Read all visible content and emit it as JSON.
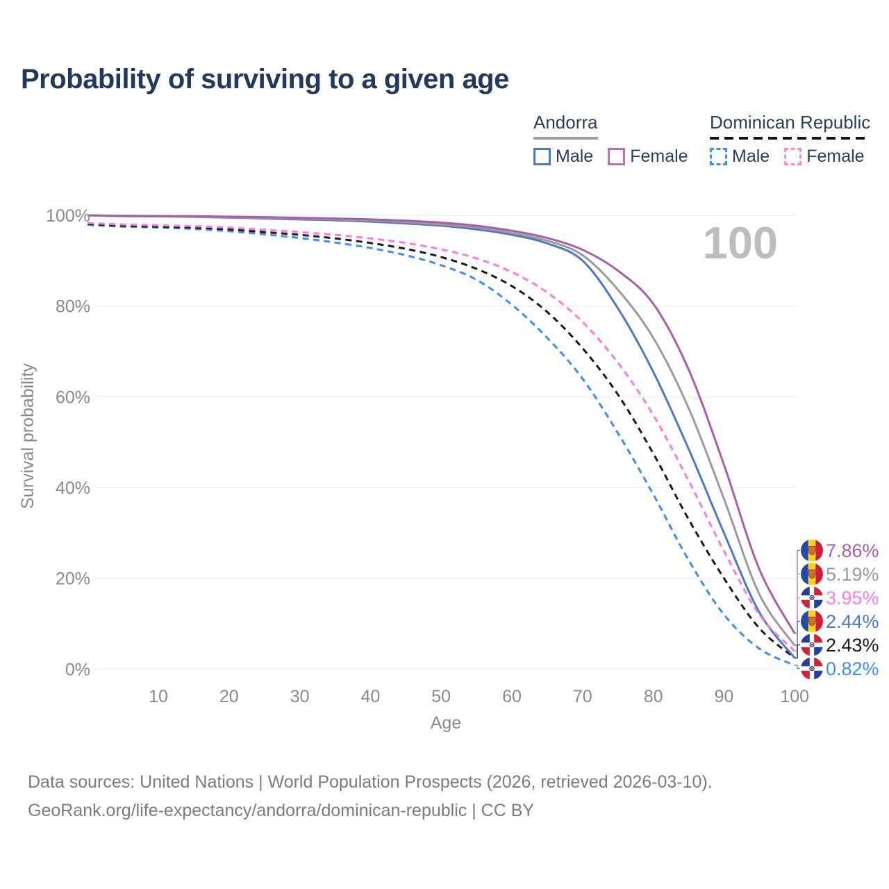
{
  "title": "Probability of surviving to a given age",
  "watermark": "100",
  "legend": {
    "groups": [
      {
        "country": "Andorra",
        "style": "solid",
        "items": [
          {
            "label": "Male",
            "color": "#4c79c5"
          },
          {
            "label": "Female",
            "color": "#b96fbb"
          }
        ]
      },
      {
        "country": "Dominican Republic",
        "style": "dashed",
        "items": [
          {
            "label": "Male",
            "color": "#3d8efd"
          },
          {
            "label": "Female",
            "color": "#fc84e8"
          }
        ]
      }
    ]
  },
  "chart_data": {
    "type": "line",
    "title": "Probability of surviving to a given age",
    "xlabel": "Age",
    "ylabel": "Survival probability",
    "xlim": [
      0,
      100
    ],
    "ylim": [
      0,
      100
    ],
    "grid": "horizontal",
    "x_ticks": [
      10,
      20,
      30,
      40,
      50,
      60,
      70,
      80,
      90,
      100
    ],
    "y_ticks": [
      {
        "value": 0,
        "label": "0%"
      },
      {
        "value": 20,
        "label": "20%"
      },
      {
        "value": 40,
        "label": "40%"
      },
      {
        "value": 60,
        "label": "60%"
      },
      {
        "value": 80,
        "label": "80%"
      },
      {
        "value": 100,
        "label": "100%"
      }
    ],
    "x": [
      0,
      5,
      10,
      15,
      20,
      25,
      30,
      35,
      40,
      45,
      50,
      55,
      60,
      65,
      70,
      75,
      80,
      85,
      90,
      95,
      100
    ],
    "series": [
      {
        "id": "andorra-female",
        "name": "Andorra Female",
        "country": "Andorra",
        "sex": "Female",
        "color": "#a75fa9",
        "dashed": false,
        "flag": "andorra",
        "end_label": "7.86%",
        "end_value": 7.86,
        "values": [
          100,
          99.9,
          99.85,
          99.8,
          99.7,
          99.6,
          99.45,
          99.3,
          99.1,
          98.8,
          98.4,
          97.7,
          96.6,
          95.0,
          92.4,
          87.8,
          80.5,
          66.0,
          45.0,
          22.0,
          7.86
        ]
      },
      {
        "id": "andorra-combined",
        "name": "Andorra (combined)",
        "country": "Andorra",
        "sex": "Both",
        "color": "#9b9b9f",
        "dashed": false,
        "flag": "andorra",
        "end_label": "5.19%",
        "end_value": 5.19,
        "values": [
          100,
          99.85,
          99.8,
          99.7,
          99.6,
          99.45,
          99.3,
          99.1,
          98.85,
          98.5,
          98.0,
          97.3,
          96.1,
          94.4,
          91.2,
          83.6,
          73.0,
          57.5,
          37.5,
          16.5,
          5.19
        ]
      },
      {
        "id": "dominican-republic-female",
        "name": "Dominican Republic Female",
        "country": "Dominican Republic",
        "sex": "Female",
        "color": "#fc7ae2",
        "dashed": true,
        "flag": "dominican-republic",
        "end_label": "3.95%",
        "end_value": 3.95,
        "values": [
          98.3,
          98.0,
          97.8,
          97.6,
          97.3,
          96.8,
          96.3,
          95.7,
          94.9,
          93.9,
          92.5,
          90.5,
          87.5,
          83.0,
          76.5,
          67.5,
          56.0,
          41.5,
          26.0,
          12.0,
          3.95
        ]
      },
      {
        "id": "andorra-male",
        "name": "Andorra Male",
        "country": "Andorra",
        "sex": "Male",
        "color": "#4c79c5",
        "dashed": false,
        "flag": "andorra",
        "end_label": "2.44%",
        "end_value": 2.44,
        "values": [
          100,
          99.8,
          99.75,
          99.65,
          99.5,
          99.3,
          99.1,
          98.9,
          98.6,
          98.2,
          97.7,
          96.9,
          95.7,
          93.8,
          90.0,
          79.5,
          65.5,
          48.5,
          30.0,
          12.5,
          2.44
        ]
      },
      {
        "id": "dominican-republic-combined",
        "name": "Dominican Republic (combined)",
        "country": "Dominican Republic",
        "sex": "Both",
        "color": "#1a1a1a",
        "dashed": true,
        "flag": "dominican-republic",
        "end_label": "2.43%",
        "end_value": 2.43,
        "values": [
          98.1,
          97.7,
          97.5,
          97.3,
          96.9,
          96.3,
          95.7,
          94.9,
          93.9,
          92.6,
          90.8,
          88.2,
          84.4,
          78.7,
          70.7,
          60.5,
          47.5,
          33.0,
          20.0,
          9.0,
          2.43
        ]
      },
      {
        "id": "dominican-republic-male",
        "name": "Dominican Republic Male",
        "country": "Dominican Republic",
        "sex": "Male",
        "color": "#3c8df5",
        "dashed": true,
        "flag": "dominican-republic",
        "end_label": "0.82%",
        "end_value": 0.82,
        "values": [
          97.9,
          97.5,
          97.3,
          97.0,
          96.5,
          95.8,
          95.0,
          94.0,
          92.8,
          91.2,
          89.0,
          85.8,
          80.3,
          73.0,
          64.0,
          52.0,
          38.5,
          24.0,
          12.0,
          4.5,
          0.82
        ]
      }
    ]
  },
  "footer": {
    "line1": "Data sources: United Nations | World Population Prospects (2026, retrieved 2026-03-10).",
    "line2": "GeoRank.org/life-expectancy/andorra/dominican-republic | CC BY"
  }
}
